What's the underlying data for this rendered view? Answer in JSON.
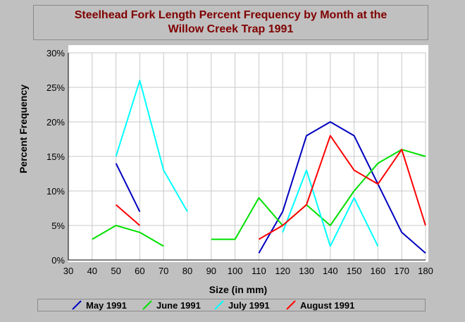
{
  "chart_data": {
    "type": "line",
    "title_lines": [
      "Steelhead Fork Length Percent Frequency by Month at the",
      "Willow Creek Trap 1991"
    ],
    "xlabel": "Size (in mm)",
    "ylabel": "Percent Frequency",
    "xlim": [
      30,
      180
    ],
    "ylim": [
      0,
      30
    ],
    "x_ticks": [
      "30",
      "40",
      "50",
      "60",
      "70",
      "80",
      "90",
      "100",
      "110",
      "120",
      "130",
      "140",
      "150",
      "160",
      "170",
      "180"
    ],
    "y_ticks": [
      "0%",
      "5%",
      "10%",
      "15%",
      "20%",
      "25%",
      "30%"
    ],
    "grid": true,
    "legend_position": "bottom",
    "series": [
      {
        "name": "May 1991",
        "color": "#0000c0",
        "segments": [
          [
            [
              50,
              14
            ],
            [
              60,
              7
            ]
          ],
          [
            [
              110,
              1
            ],
            [
              120,
              7
            ],
            [
              130,
              18
            ],
            [
              140,
              20
            ],
            [
              150,
              18
            ],
            [
              160,
              11
            ],
            [
              170,
              4
            ],
            [
              180,
              1
            ]
          ]
        ]
      },
      {
        "name": "June 1991",
        "color": "#00e000",
        "segments": [
          [
            [
              40,
              3
            ],
            [
              50,
              5
            ],
            [
              60,
              4
            ],
            [
              70,
              2
            ]
          ],
          [
            [
              90,
              3
            ],
            [
              100,
              3
            ],
            [
              110,
              9
            ],
            [
              120,
              5
            ],
            [
              130,
              8
            ],
            [
              140,
              5
            ],
            [
              150,
              10
            ],
            [
              160,
              14
            ],
            [
              170,
              16
            ],
            [
              180,
              15
            ]
          ]
        ]
      },
      {
        "name": "July 1991",
        "color": "#00ffff",
        "segments": [
          [
            [
              50,
              15
            ],
            [
              60,
              26
            ],
            [
              70,
              13
            ],
            [
              80,
              7
            ]
          ],
          [
            [
              120,
              4
            ],
            [
              130,
              13
            ],
            [
              140,
              2
            ],
            [
              150,
              9
            ],
            [
              160,
              2
            ]
          ]
        ]
      },
      {
        "name": "August 1991",
        "color": "#ff0000",
        "segments": [
          [
            [
              50,
              8
            ],
            [
              60,
              5
            ]
          ],
          [
            [
              110,
              3
            ],
            [
              120,
              5
            ],
            [
              130,
              8
            ],
            [
              140,
              18
            ],
            [
              150,
              13
            ],
            [
              160,
              11
            ],
            [
              170,
              16
            ],
            [
              180,
              5
            ]
          ]
        ]
      }
    ]
  }
}
